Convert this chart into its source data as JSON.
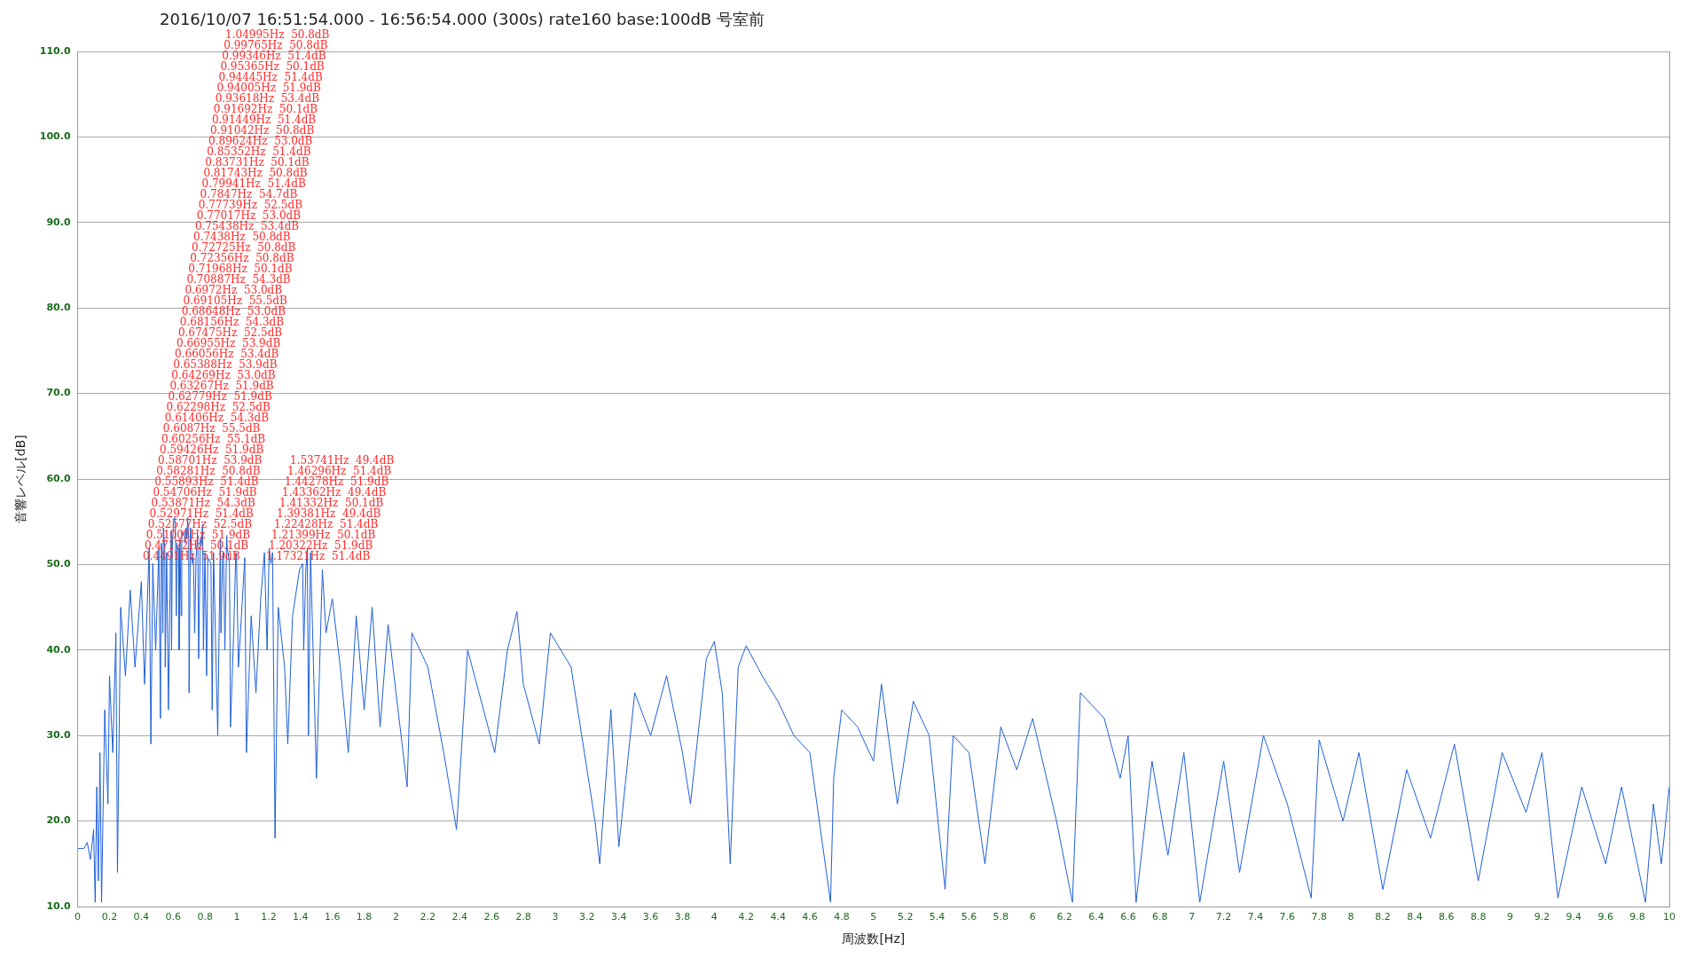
{
  "chart_data": {
    "type": "line",
    "title": "2016/10/07 16:51:54.000 - 16:56:54.000 (300s) rate160 base:100dB 号室前",
    "xlabel": "周波数[Hz]",
    "ylabel": "音響レベル[dB]",
    "xlim": [
      0,
      10
    ],
    "xticks": [
      0,
      0.2,
      0.4,
      0.6,
      0.8,
      1,
      1.2,
      1.4,
      1.6,
      1.8,
      2,
      2.2,
      2.4,
      2.6,
      2.8,
      3,
      3.2,
      3.4,
      3.6,
      3.8,
      4,
      4.2,
      4.4,
      4.6,
      4.8,
      5,
      5.2,
      5.4,
      5.6,
      5.8,
      6,
      6.2,
      6.4,
      6.6,
      6.8,
      7,
      7.2,
      7.4,
      7.6,
      7.8,
      8,
      8.2,
      8.4,
      8.6,
      8.8,
      9,
      9.2,
      9.4,
      9.6,
      9.8,
      10
    ],
    "ylim": [
      10,
      110
    ],
    "yticks": [
      {
        "value": 10,
        "label": "10.0"
      },
      {
        "value": 20,
        "label": "20.0"
      },
      {
        "value": 30,
        "label": "30.0"
      },
      {
        "value": 40,
        "label": "40.0"
      },
      {
        "value": 50,
        "label": "50.0"
      },
      {
        "value": 60,
        "label": "60.0"
      },
      {
        "value": 70,
        "label": "70.0"
      },
      {
        "value": 80,
        "label": "80.0"
      },
      {
        "value": 90,
        "label": "90.0"
      },
      {
        "value": 100,
        "label": "100.0"
      },
      {
        "value": 110,
        "label": "110.0"
      }
    ],
    "grid": "y",
    "legend": false,
    "marker": "none",
    "line_style": "solid",
    "x": [
      0,
      0.04,
      0.06,
      0.08,
      0.1,
      0.11,
      0.12,
      0.13,
      0.14,
      0.15,
      0.17,
      0.19,
      0.2,
      0.22,
      0.24,
      0.25,
      0.27,
      0.3,
      0.33,
      0.36,
      0.4,
      0.42,
      0.4491,
      0.46,
      0.47172,
      0.49,
      0.51002,
      0.52,
      0.52577,
      0.52971,
      0.535,
      0.53871,
      0.54706,
      0.55,
      0.55893,
      0.57,
      0.58281,
      0.58701,
      0.59,
      0.59426,
      0.60256,
      0.6087,
      0.61406,
      0.62,
      0.62298,
      0.62779,
      0.63267,
      0.637,
      0.64269,
      0.65,
      0.65388,
      0.66056,
      0.66955,
      0.67475,
      0.68156,
      0.68648,
      0.69105,
      0.6972,
      0.7,
      0.70887,
      0.71968,
      0.72356,
      0.72725,
      0.735,
      0.7438,
      0.75438,
      0.76,
      0.77017,
      0.77739,
      0.7847,
      0.79,
      0.79941,
      0.81,
      0.81743,
      0.83731,
      0.845,
      0.85352,
      0.87,
      0.88,
      0.89624,
      0.9,
      0.91042,
      0.91449,
      0.91692,
      0.925,
      0.93618,
      0.94005,
      0.94445,
      0.95365,
      0.96,
      0.98,
      0.99346,
      0.99765,
      1.01,
      1.04995,
      1.06,
      1.09,
      1.12,
      1.15,
      1.17321,
      1.19,
      1.20322,
      1.21399,
      1.22428,
      1.24,
      1.26,
      1.3,
      1.32,
      1.35,
      1.39381,
      1.41332,
      1.42,
      1.43362,
      1.44278,
      1.45,
      1.46296,
      1.5,
      1.53741,
      1.56,
      1.6,
      1.65,
      1.7,
      1.75,
      1.8,
      1.85,
      1.9,
      1.95,
      2,
      2.07,
      2.1,
      2.2,
      2.3,
      2.38,
      2.45,
      2.55,
      2.62,
      2.7,
      2.76,
      2.8,
      2.9,
      2.97,
      3.1,
      3.25,
      3.28,
      3.35,
      3.4,
      3.5,
      3.6,
      3.7,
      3.8,
      3.85,
      3.95,
      4,
      4.05,
      4.1,
      4.15,
      4.2,
      4.3,
      4.4,
      4.5,
      4.6,
      4.73,
      4.75,
      4.8,
      4.9,
      5,
      5.05,
      5.15,
      5.25,
      5.35,
      5.45,
      5.5,
      5.6,
      5.7,
      5.8,
      5.9,
      6,
      6.15,
      6.25,
      6.3,
      6.45,
      6.55,
      6.6,
      6.65,
      6.75,
      6.85,
      6.95,
      7.05,
      7.2,
      7.3,
      7.45,
      7.6,
      7.75,
      7.8,
      7.95,
      8.05,
      8.2,
      8.35,
      8.5,
      8.65,
      8.8,
      8.95,
      9.1,
      9.2,
      9.3,
      9.45,
      9.6,
      9.7,
      9.85,
      9.9,
      9.95,
      10
    ],
    "series": [
      {
        "color": "#1f5fd6",
        "values": [
          16.8,
          16.8,
          17.5,
          15.5,
          19,
          10.5,
          24,
          13,
          28,
          10.5,
          33,
          22,
          37,
          28,
          42,
          14,
          45,
          37,
          47,
          38,
          48,
          36,
          51.9,
          29,
          50.1,
          40,
          51.9,
          32,
          52.5,
          51.4,
          42,
          54.3,
          51.9,
          38,
          51.4,
          33,
          50.8,
          53.9,
          40,
          51.9,
          55.1,
          55.5,
          54.3,
          44,
          52.5,
          51.9,
          51.9,
          40,
          53.0,
          44,
          53.9,
          53.4,
          53.9,
          52.5,
          54.3,
          53.0,
          55.5,
          53.0,
          35,
          54.3,
          50.1,
          50.8,
          50.8,
          42,
          50.8,
          53.4,
          39,
          53.0,
          52.5,
          54.7,
          40,
          51.4,
          37,
          50.8,
          50.1,
          33,
          51.4,
          38,
          30,
          53.0,
          42,
          50.8,
          51.4,
          50.1,
          40,
          53.4,
          51.9,
          51.4,
          50.1,
          31,
          42,
          51.4,
          50.8,
          38,
          50.8,
          28,
          44,
          35,
          46,
          51.4,
          40,
          51.9,
          50.1,
          51.4,
          18,
          45,
          38,
          29,
          44,
          49.4,
          50.1,
          40,
          49.4,
          51.9,
          30,
          51.4,
          25,
          49.4,
          42,
          46,
          38,
          28,
          44,
          33,
          45,
          31,
          43,
          35,
          24,
          42,
          38,
          28,
          19,
          40,
          33,
          28,
          40,
          44.5,
          36,
          29,
          42,
          38,
          20,
          15,
          33,
          17,
          35,
          30,
          37,
          28,
          22,
          39,
          41,
          35,
          15,
          38,
          40.5,
          37,
          34,
          30,
          28,
          10.5,
          25,
          33,
          31,
          27,
          36,
          22,
          34,
          30,
          12,
          30,
          28,
          15,
          31,
          26,
          32,
          20,
          10.5,
          35,
          32,
          25,
          30,
          10.5,
          27,
          16,
          28,
          10.5,
          27,
          14,
          30,
          22,
          11,
          29.5,
          20,
          28,
          12,
          26,
          18,
          29,
          13,
          28,
          21,
          28,
          11,
          24,
          15,
          24,
          10.5,
          22,
          15,
          24
        ]
      }
    ],
    "annotations": [
      "0.4491Hz  51.9dB",
      "0.47172Hz  50.1dB",
      "0.51002Hz  51.9dB",
      "0.52577Hz  52.5dB",
      "0.52971Hz  51.4dB",
      "0.53871Hz  54.3dB",
      "0.54706Hz  51.9dB",
      "0.55893Hz  51.4dB",
      "0.58281Hz  50.8dB",
      "0.58701Hz  53.9dB",
      "0.59426Hz  51.9dB",
      "0.60256Hz  55.1dB",
      "0.6087Hz  55.5dB",
      "0.61406Hz  54.3dB",
      "0.62298Hz  52.5dB",
      "0.62779Hz  51.9dB",
      "0.63267Hz  51.9dB",
      "0.64269Hz  53.0dB",
      "0.65388Hz  53.9dB",
      "0.66056Hz  53.4dB",
      "0.66955Hz  53.9dB",
      "0.67475Hz  52.5dB",
      "0.68156Hz  54.3dB",
      "0.68648Hz  53.0dB",
      "0.69105Hz  55.5dB",
      "0.6972Hz  53.0dB",
      "0.70887Hz  54.3dB",
      "0.71968Hz  50.1dB",
      "0.72356Hz  50.8dB",
      "0.72725Hz  50.8dB",
      "0.7438Hz  50.8dB",
      "0.75438Hz  53.4dB",
      "0.77017Hz  53.0dB",
      "0.77739Hz  52.5dB",
      "0.7847Hz  54.7dB",
      "0.79941Hz  51.4dB",
      "0.81743Hz  50.8dB",
      "0.83731Hz  50.1dB",
      "0.85352Hz  51.4dB",
      "0.89624Hz  53.0dB",
      "0.91042Hz  50.8dB",
      "0.91449Hz  51.4dB",
      "0.91692Hz  50.1dB",
      "0.93618Hz  53.4dB",
      "0.94005Hz  51.9dB",
      "0.94445Hz  51.4dB",
      "0.95365Hz  50.1dB",
      "0.99346Hz  51.4dB",
      "0.99765Hz  50.8dB",
      "1.04995Hz  50.8dB",
      "1.17321Hz  51.4dB",
      "1.20322Hz  51.9dB",
      "1.21399Hz  50.1dB",
      "1.22428Hz  51.4dB",
      "1.39381Hz  49.4dB",
      "1.41332Hz  50.1dB",
      "1.43362Hz  49.4dB",
      "1.44278Hz  51.9dB",
      "1.46296Hz  51.4dB",
      "1.53741Hz  49.4dB"
    ]
  }
}
